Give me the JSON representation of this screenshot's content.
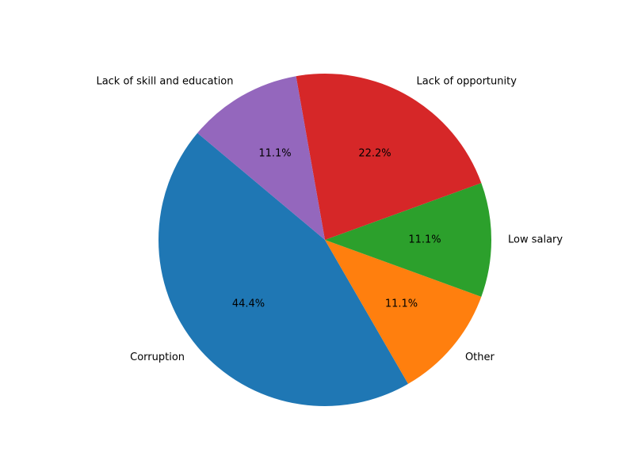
{
  "chart_data": {
    "type": "pie",
    "title": "",
    "categories": [
      "Corruption",
      "Other",
      "Low salary",
      "Lack of opportunity",
      "Lack of skill and education"
    ],
    "values": [
      44.4,
      11.1,
      11.1,
      22.2,
      11.1
    ],
    "percent_labels": [
      "44.4%",
      "11.1%",
      "11.1%",
      "22.2%",
      "11.1%"
    ],
    "colors": [
      "#1f77b4",
      "#ff7f0e",
      "#2ca02c",
      "#d62728",
      "#9467bd"
    ],
    "start_angle_deg": 140,
    "direction": "counterclockwise",
    "legend": "none"
  }
}
